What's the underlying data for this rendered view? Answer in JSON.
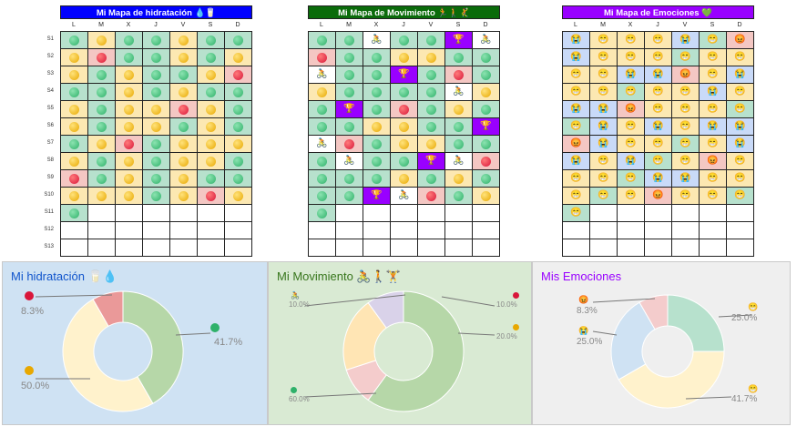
{
  "colors": {
    "green_cell": "#b7e1cd",
    "yellow_cell": "#fce8b2",
    "red_cell": "#f4c7c3",
    "purple_cell": "#9900ff",
    "blue_cell": "#c9daf8",
    "white_cell": "#ffffff",
    "hydration_title_bg": "#0000ff",
    "movement_title_bg": "#0a6b0a",
    "emotions_title_bg": "#9900ff"
  },
  "day_headers": [
    "L",
    "M",
    "X",
    "J",
    "V",
    "S",
    "D"
  ],
  "week_labels": [
    "S1",
    "S2",
    "S3",
    "S4",
    "S5",
    "S6",
    "S7",
    "S8",
    "S9",
    "S10",
    "S11",
    "S12",
    "S13"
  ],
  "hydration_table": {
    "title": "Mi Mapa de hidratación 💧🥛",
    "rows": [
      [
        "g",
        "y",
        "g",
        "g",
        "y",
        "g",
        "g"
      ],
      [
        "y",
        "r",
        "g",
        "g",
        "y",
        "g",
        "y"
      ],
      [
        "y",
        "g",
        "y",
        "g",
        "g",
        "y",
        "r"
      ],
      [
        "g",
        "g",
        "y",
        "g",
        "y",
        "g",
        "g"
      ],
      [
        "y",
        "g",
        "y",
        "y",
        "r",
        "y",
        "g"
      ],
      [
        "y",
        "g",
        "y",
        "y",
        "g",
        "y",
        "g"
      ],
      [
        "g",
        "y",
        "r",
        "g",
        "y",
        "y",
        "y"
      ],
      [
        "y",
        "g",
        "y",
        "g",
        "y",
        "y",
        "g"
      ],
      [
        "r",
        "g",
        "y",
        "g",
        "y",
        "g",
        "g"
      ],
      [
        "y",
        "y",
        "y",
        "g",
        "y",
        "r",
        "y"
      ],
      [
        "g",
        "",
        "",
        "",
        "",
        "",
        ""
      ],
      [
        "",
        "",
        "",
        "",
        "",
        "",
        ""
      ],
      [
        "",
        "",
        "",
        "",
        "",
        "",
        ""
      ]
    ]
  },
  "movement_table": {
    "title": "Mi Mapa de Movimiento 🏃🚶🤾",
    "rows": [
      [
        "g",
        "g",
        "b",
        "g",
        "g",
        "t",
        "b"
      ],
      [
        "r",
        "g",
        "g",
        "y",
        "y",
        "g",
        "g"
      ],
      [
        "b",
        "g",
        "g",
        "t",
        "g",
        "r",
        "g"
      ],
      [
        "y",
        "g",
        "g",
        "g",
        "g",
        "b",
        "y"
      ],
      [
        "g",
        "t",
        "g",
        "r",
        "g",
        "y",
        "g"
      ],
      [
        "g",
        "g",
        "y",
        "y",
        "g",
        "g",
        "t"
      ],
      [
        "b",
        "r",
        "g",
        "y",
        "y",
        "g",
        "g"
      ],
      [
        "g",
        "b",
        "g",
        "g",
        "t",
        "b",
        "r"
      ],
      [
        "g",
        "g",
        "g",
        "y",
        "g",
        "y",
        "g"
      ],
      [
        "g",
        "g",
        "t",
        "b",
        "r",
        "g",
        "y"
      ],
      [
        "g",
        "",
        "",
        "",
        "",
        "",
        ""
      ],
      [
        "",
        "",
        "",
        "",
        "",
        "",
        ""
      ],
      [
        "",
        "",
        "",
        "",
        "",
        "",
        ""
      ]
    ]
  },
  "emotions_table": {
    "title": "Mi Mapa de Emociones 💚",
    "rows": [
      [
        "c",
        "h",
        "h",
        "h",
        "c",
        "h",
        "a"
      ],
      [
        "c",
        "h",
        "h",
        "h",
        "h",
        "h",
        "h"
      ],
      [
        "h",
        "h",
        "c",
        "c",
        "a",
        "h",
        "c"
      ],
      [
        "h",
        "h",
        "h",
        "h",
        "h",
        "c",
        "h"
      ],
      [
        "c",
        "c",
        "a",
        "h",
        "h",
        "h",
        "h"
      ],
      [
        "h",
        "c",
        "h",
        "c",
        "h",
        "c",
        "c"
      ],
      [
        "a",
        "c",
        "h",
        "h",
        "h",
        "h",
        "c"
      ],
      [
        "c",
        "h",
        "c",
        "h",
        "h",
        "a",
        "h"
      ],
      [
        "h",
        "h",
        "h",
        "c",
        "c",
        "h",
        "h"
      ],
      [
        "h",
        "h",
        "h",
        "a",
        "h",
        "h",
        "h"
      ],
      [
        "h",
        "",
        "",
        "",
        "",
        "",
        ""
      ],
      [
        "",
        "",
        "",
        "",
        "",
        "",
        ""
      ],
      [
        "",
        "",
        "",
        "",
        "",
        "",
        ""
      ]
    ]
  },
  "icons": {
    "movement_trophy": "🏆",
    "movement_cyclist": "🚴",
    "emotion_happy": "😁",
    "emotion_cry": "😭",
    "emotion_angry": "😡"
  },
  "hydration_chart": {
    "title": "Mi hidratación 🥛💧",
    "bg": "#cfe2f3",
    "chart_data": {
      "type": "pie",
      "categories": [
        "green",
        "yellow",
        "red"
      ],
      "values": [
        41.7,
        50.0,
        8.3
      ],
      "labels": [
        "41.7%",
        "50.0%",
        "8.3%"
      ],
      "colors": [
        "#b6d7a8",
        "#fff2cc",
        "#ea9999"
      ]
    }
  },
  "movement_chart": {
    "title": "Mi Movimiento 🚴🚶🏋",
    "bg": "#d9ead3",
    "chart_data": {
      "type": "pie",
      "categories": [
        "green",
        "red",
        "yellow",
        "other"
      ],
      "values": [
        60.0,
        10.0,
        20.0,
        10.0
      ],
      "labels": [
        "60.0%",
        "10.0%",
        "20.0%",
        "10.0%"
      ],
      "colors": [
        "#b6d7a8",
        "#f4cccc",
        "#ffe5b4",
        "#d9d2e9"
      ]
    }
  },
  "emotions_chart": {
    "title": "Mis Emociones",
    "bg": "#efefef",
    "chart_data": {
      "type": "pie",
      "categories": [
        "happy",
        "neutral",
        "cry",
        "angry"
      ],
      "values": [
        25.0,
        41.7,
        25.0,
        8.3
      ],
      "labels": [
        "25.0%",
        "41.7%",
        "25.0%",
        "8.3%"
      ],
      "colors": [
        "#b7e1cd",
        "#fff2cc",
        "#cfe2f3",
        "#f4cccc"
      ]
    }
  }
}
